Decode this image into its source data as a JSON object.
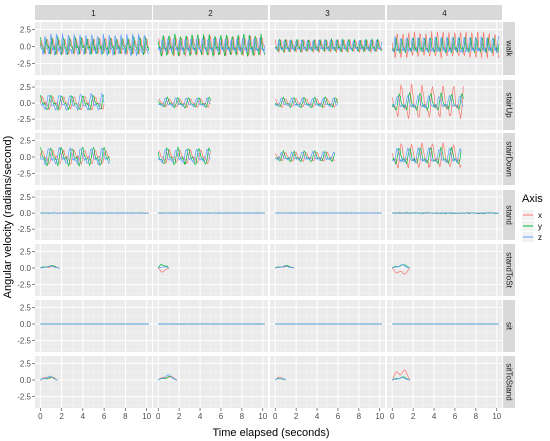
{
  "chart_data": {
    "type": "line",
    "facet_columns": [
      "1",
      "2",
      "3",
      "4"
    ],
    "facet_rows": [
      "walk",
      "stairUp",
      "stairDown",
      "stand",
      "standToSit",
      "sit",
      "sitToStand"
    ],
    "facet_row_labels": [
      "walk",
      "stairUp",
      "stairDown",
      "stand",
      "standToSt",
      "sit",
      "sitToStand"
    ],
    "xlabel": "Time elapsed (seconds)",
    "ylabel": "Angular velocity (radians/second)",
    "x_ticks": [
      0,
      2,
      4,
      6,
      8,
      10
    ],
    "x_tick_labels": [
      "0",
      "2",
      "4",
      "6",
      "8",
      "10"
    ],
    "xlim": [
      -0.5,
      10.5
    ],
    "y_ticks": [
      -2.5,
      0,
      2.5
    ],
    "y_tick_labels": [
      "-2.5",
      "0.0",
      "2.5"
    ],
    "ylim": [
      -4.2,
      3.6
    ],
    "legend": {
      "title": "Axis",
      "position": "right",
      "entries": [
        "x",
        "y",
        "z"
      ]
    },
    "series_colors": {
      "x": "#F8766D",
      "y": "#00BA38",
      "z": "#619CFF"
    },
    "activity_duration_s": {
      "walk": [
        10.2,
        10.2,
        10.2,
        10.2
      ],
      "stairUp": [
        6.0,
        5.0,
        6.0,
        6.8
      ],
      "stairDown": [
        6.5,
        5.0,
        5.7,
        6.6
      ],
      "stand": [
        10.2,
        10.2,
        10.2,
        10.2
      ],
      "standToSit": [
        1.8,
        1.0,
        1.8,
        1.7
      ],
      "sit": [
        10.2,
        10.2,
        10.2,
        10.2
      ],
      "sitToStand": [
        1.6,
        1.8,
        1.0,
        1.7
      ]
    },
    "approx_amplitude_rad_s": {
      "walk": {
        "x": [
          1.0,
          1.2,
          0.8,
          1.7
        ],
        "y": [
          1.1,
          1.4,
          0.8,
          1.0
        ],
        "z": [
          1.4,
          0.9,
          0.7,
          1.1
        ]
      },
      "stairUp": {
        "x": [
          0.9,
          0.6,
          0.6,
          2.3
        ],
        "y": [
          1.0,
          0.7,
          0.7,
          1.2
        ],
        "z": [
          1.1,
          0.6,
          0.6,
          0.9
        ]
      },
      "stairDown": {
        "x": [
          0.9,
          0.9,
          0.6,
          1.6
        ],
        "y": [
          1.2,
          1.1,
          0.7,
          1.1
        ],
        "z": [
          1.1,
          0.9,
          0.6,
          1.0
        ]
      },
      "stand": {
        "x": [
          0.05,
          0.05,
          0.05,
          0.1
        ],
        "y": [
          0.1,
          0.1,
          0.05,
          0.2
        ],
        "z": [
          0.05,
          0.05,
          0.05,
          0.08
        ]
      },
      "standToSit": {
        "x": [
          0.3,
          0.7,
          0.3,
          1.2
        ],
        "y": [
          0.4,
          0.8,
          0.4,
          0.6
        ],
        "z": [
          0.3,
          0.3,
          0.3,
          0.5
        ]
      },
      "sit": {
        "x": [
          0.02,
          0.02,
          0.02,
          0.02
        ],
        "y": [
          0.03,
          0.1,
          0.03,
          0.03
        ],
        "z": [
          0.02,
          0.02,
          0.02,
          0.02
        ]
      },
      "sitToStand": {
        "x": [
          0.6,
          0.7,
          0.5,
          2.0
        ],
        "y": [
          0.5,
          0.6,
          0.4,
          0.5
        ],
        "z": [
          0.6,
          0.8,
          0.4,
          0.4
        ]
      }
    },
    "grid": true
  }
}
